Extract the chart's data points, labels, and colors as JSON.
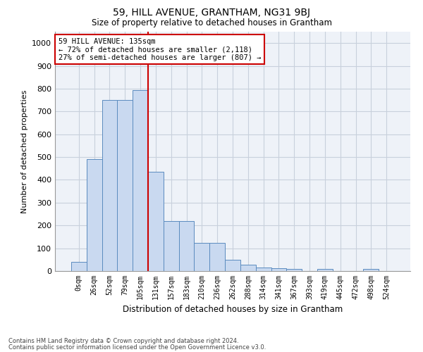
{
  "title": "59, HILL AVENUE, GRANTHAM, NG31 9BJ",
  "subtitle": "Size of property relative to detached houses in Grantham",
  "xlabel": "Distribution of detached houses by size in Grantham",
  "ylabel": "Number of detached properties",
  "bin_labels": [
    "0sqm",
    "26sqm",
    "52sqm",
    "79sqm",
    "105sqm",
    "131sqm",
    "157sqm",
    "183sqm",
    "210sqm",
    "236sqm",
    "262sqm",
    "288sqm",
    "314sqm",
    "341sqm",
    "367sqm",
    "393sqm",
    "419sqm",
    "445sqm",
    "472sqm",
    "498sqm",
    "524sqm"
  ],
  "bar_values": [
    40,
    490,
    750,
    750,
    795,
    435,
    220,
    220,
    125,
    125,
    48,
    28,
    15,
    12,
    10,
    0,
    8,
    0,
    0,
    8,
    0
  ],
  "bar_color": "#c9d9f0",
  "bar_edge_color": "#5b8bbf",
  "vline_x": 4.5,
  "vline_color": "#cc0000",
  "ylim": [
    0,
    1050
  ],
  "yticks": [
    0,
    100,
    200,
    300,
    400,
    500,
    600,
    700,
    800,
    900,
    1000
  ],
  "annotation_title": "59 HILL AVENUE: 135sqm",
  "annotation_line1": "← 72% of detached houses are smaller (2,118)",
  "annotation_line2": "27% of semi-detached houses are larger (807) →",
  "annotation_box_color": "#ffffff",
  "annotation_border_color": "#cc0000",
  "footer_line1": "Contains HM Land Registry data © Crown copyright and database right 2024.",
  "footer_line2": "Contains public sector information licensed under the Open Government Licence v3.0.",
  "background_color": "#ffffff",
  "grid_color": "#c8d0dc"
}
